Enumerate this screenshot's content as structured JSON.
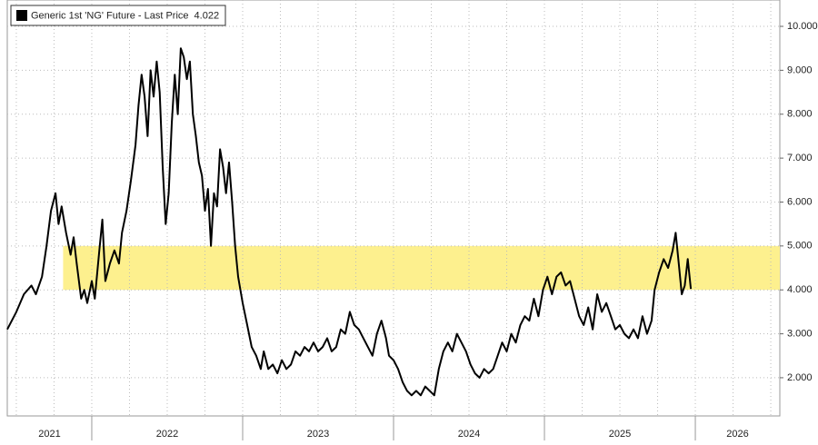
{
  "chart_data": {
    "type": "line",
    "series": [
      {
        "name": "Generic 1st 'NG' Future - Last Price",
        "last_value": 4.022,
        "color": "#000000",
        "x": [
          2021.44,
          2021.5,
          2021.55,
          2021.6,
          2021.63,
          2021.67,
          2021.7,
          2021.73,
          2021.76,
          2021.78,
          2021.8,
          2021.83,
          2021.86,
          2021.88,
          2021.9,
          2021.93,
          2021.95,
          2021.97,
          2022.0,
          2022.02,
          2022.05,
          2022.07,
          2022.09,
          2022.12,
          2022.15,
          2022.18,
          2022.2,
          2022.23,
          2022.26,
          2022.29,
          2022.31,
          2022.33,
          2022.35,
          2022.37,
          2022.39,
          2022.41,
          2022.43,
          2022.45,
          2022.47,
          2022.49,
          2022.51,
          2022.53,
          2022.55,
          2022.57,
          2022.59,
          2022.61,
          2022.63,
          2022.65,
          2022.67,
          2022.69,
          2022.71,
          2022.73,
          2022.75,
          2022.77,
          2022.79,
          2022.81,
          2022.83,
          2022.85,
          2022.87,
          2022.89,
          2022.91,
          2022.93,
          2022.95,
          2022.97,
          2023.0,
          2023.03,
          2023.06,
          2023.09,
          2023.12,
          2023.14,
          2023.17,
          2023.2,
          2023.23,
          2023.26,
          2023.29,
          2023.32,
          2023.35,
          2023.38,
          2023.41,
          2023.44,
          2023.47,
          2023.5,
          2023.53,
          2023.56,
          2023.59,
          2023.62,
          2023.65,
          2023.68,
          2023.71,
          2023.74,
          2023.77,
          2023.8,
          2023.83,
          2023.86,
          2023.89,
          2023.92,
          2023.95,
          2023.97,
          2024.0,
          2024.03,
          2024.06,
          2024.09,
          2024.12,
          2024.15,
          2024.18,
          2024.21,
          2024.24,
          2024.27,
          2024.3,
          2024.33,
          2024.36,
          2024.39,
          2024.42,
          2024.45,
          2024.48,
          2024.51,
          2024.54,
          2024.57,
          2024.6,
          2024.63,
          2024.66,
          2024.69,
          2024.72,
          2024.75,
          2024.78,
          2024.81,
          2024.84,
          2024.87,
          2024.9,
          2024.93,
          2024.96,
          2024.99,
          2025.02,
          2025.05,
          2025.08,
          2025.11,
          2025.14,
          2025.17,
          2025.2,
          2025.23,
          2025.26,
          2025.29,
          2025.32,
          2025.35,
          2025.38,
          2025.41,
          2025.44,
          2025.47,
          2025.5,
          2025.53,
          2025.56,
          2025.59,
          2025.62,
          2025.65,
          2025.68,
          2025.71,
          2025.73,
          2025.76,
          2025.79,
          2025.82,
          2025.85,
          2025.87,
          2025.89,
          2025.91,
          2025.93,
          2025.95,
          2025.97
        ],
        "values": [
          3.1,
          3.5,
          3.9,
          4.1,
          3.9,
          4.3,
          5.0,
          5.8,
          6.2,
          5.5,
          5.9,
          5.3,
          4.8,
          5.2,
          4.6,
          3.8,
          4.0,
          3.7,
          4.2,
          3.8,
          4.9,
          5.6,
          4.2,
          4.6,
          4.9,
          4.6,
          5.3,
          5.8,
          6.5,
          7.3,
          8.2,
          8.9,
          8.4,
          7.5,
          9.0,
          8.4,
          9.2,
          8.5,
          6.8,
          5.5,
          6.2,
          7.8,
          8.9,
          8.0,
          9.5,
          9.3,
          8.8,
          9.2,
          8.0,
          7.5,
          6.9,
          6.6,
          5.8,
          6.3,
          5.0,
          6.2,
          5.9,
          7.2,
          6.8,
          6.2,
          6.9,
          6.0,
          5.0,
          4.3,
          3.7,
          3.2,
          2.7,
          2.5,
          2.2,
          2.6,
          2.2,
          2.3,
          2.1,
          2.4,
          2.2,
          2.3,
          2.6,
          2.5,
          2.7,
          2.6,
          2.8,
          2.6,
          2.7,
          2.9,
          2.6,
          2.7,
          3.1,
          3.0,
          3.5,
          3.2,
          3.1,
          2.9,
          2.7,
          2.5,
          3.0,
          3.3,
          2.9,
          2.5,
          2.4,
          2.2,
          1.9,
          1.7,
          1.6,
          1.7,
          1.6,
          1.8,
          1.7,
          1.6,
          2.2,
          2.6,
          2.8,
          2.6,
          3.0,
          2.8,
          2.6,
          2.3,
          2.1,
          2.0,
          2.2,
          2.1,
          2.2,
          2.5,
          2.8,
          2.6,
          3.0,
          2.8,
          3.2,
          3.4,
          3.3,
          3.8,
          3.4,
          4.0,
          4.3,
          3.9,
          4.3,
          4.4,
          4.1,
          4.2,
          3.8,
          3.4,
          3.2,
          3.6,
          3.1,
          3.9,
          3.5,
          3.7,
          3.4,
          3.1,
          3.2,
          3.0,
          2.9,
          3.1,
          2.9,
          3.4,
          3.0,
          3.3,
          4.0,
          4.4,
          4.7,
          4.5,
          4.9,
          5.3,
          4.6,
          3.9,
          4.1,
          4.7,
          4.022
        ]
      }
    ],
    "band": {
      "from": 4,
      "to": 5,
      "x_from": 2021.81,
      "color": "#fdf08e"
    },
    "xlim": [
      2021.44,
      2026.56
    ],
    "xticks": [
      {
        "value": 2021.72,
        "label": "2021"
      },
      {
        "value": 2022.5,
        "label": "2022"
      },
      {
        "value": 2023.5,
        "label": "2023"
      },
      {
        "value": 2024.5,
        "label": "2024"
      },
      {
        "value": 2025.5,
        "label": "2025"
      },
      {
        "value": 2026.28,
        "label": "2026"
      }
    ],
    "year_boundaries": [
      2022,
      2023,
      2024,
      2025,
      2026
    ],
    "xgrid": [
      2021.5,
      2021.75,
      2022,
      2022.25,
      2022.5,
      2022.75,
      2023,
      2023.25,
      2023.5,
      2023.75,
      2024,
      2024.25,
      2024.5,
      2024.75,
      2025,
      2025.25,
      2025.5,
      2025.75,
      2026,
      2026.25,
      2026.5
    ],
    "ylim": [
      1.13,
      10.6
    ],
    "yticks": [
      {
        "value": 2,
        "label": "2.000"
      },
      {
        "value": 3,
        "label": "3.000"
      },
      {
        "value": 4,
        "label": "4.000"
      },
      {
        "value": 5,
        "label": "5.000"
      },
      {
        "value": 6,
        "label": "6.000"
      },
      {
        "value": 7,
        "label": "7.000"
      },
      {
        "value": 8,
        "label": "8.000"
      },
      {
        "value": 9,
        "label": "9.000"
      },
      {
        "value": 10,
        "label": "10.000"
      }
    ],
    "grid": true
  }
}
